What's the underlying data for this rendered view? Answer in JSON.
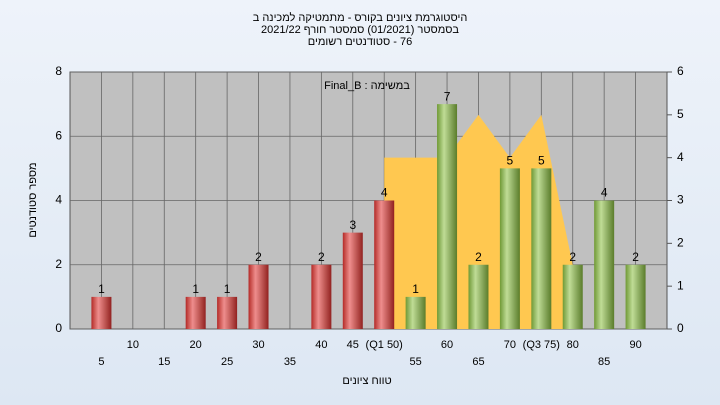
{
  "chart_data": {
    "type": "bar",
    "title": [
      "היסטוגרמת ציונים בקורס - מתמטיקה למכינה ב",
      "בסמסטר (01/2021) סמסטר חורף 2021/22",
      "76 - סטודנטים רשומים"
    ],
    "annotation": "במשימה : Final_B",
    "x_label": "טווח ציונים",
    "y_label": "מספר סטודנטים",
    "categories": [
      "5",
      "10",
      "15",
      "20",
      "25",
      "30",
      "35",
      "40",
      "45",
      "(Q1 50)",
      "55",
      "60",
      "65",
      "70",
      "(Q3 75)",
      "80",
      "85",
      "90"
    ],
    "series": [
      {
        "type": "bar",
        "colors": [
          "#e03030",
          "#e03030",
          "#e03030",
          "#e03030",
          "#e03030",
          "#e03030",
          "#e03030",
          "#e03030",
          "#e03030",
          "#e03030",
          "#8cc040",
          "#8cc040",
          "#8cc040",
          "#8cc040",
          "#8cc040",
          "#8cc040",
          "#8cc040",
          "#8cc040"
        ],
        "values": [
          1,
          0,
          0,
          1,
          1,
          2,
          0,
          2,
          3,
          4,
          1,
          7,
          2,
          5,
          5,
          2,
          4,
          2
        ]
      },
      {
        "type": "area",
        "axis": "y2",
        "color": "#ffc850",
        "values": [
          null,
          null,
          null,
          null,
          null,
          null,
          null,
          null,
          null,
          4,
          4,
          4,
          5,
          4,
          5,
          1.5,
          null,
          null
        ]
      }
    ],
    "ylim": [
      0,
      8
    ],
    "yticks": [
      0,
      2,
      4,
      6,
      8
    ],
    "y2lim": [
      0,
      6
    ],
    "y2ticks": [
      0,
      1,
      2,
      3,
      4,
      5,
      6
    ],
    "grid": true
  }
}
